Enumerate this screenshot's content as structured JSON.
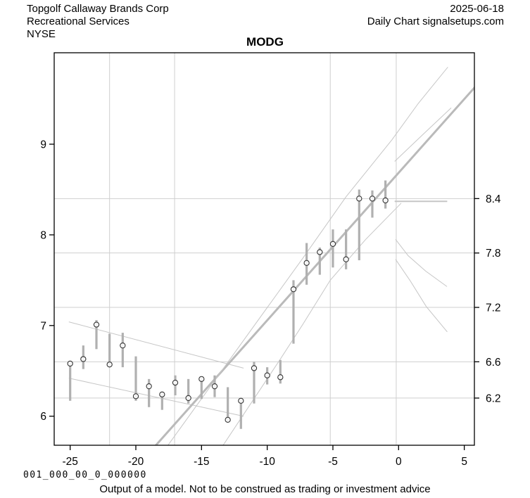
{
  "header": {
    "company": "Topgolf Callaway Brands Corp",
    "sector": "Recreational Services",
    "exchange": "NYSE",
    "date": "2025-06-18",
    "chart_type": "Daily Chart signalsetups.com"
  },
  "footer": {
    "signal_string": "0 0 1 _ 0 0 0 _ 0 0 _ 0 _ 0 0 0 0 0 0",
    "disclaimer": "Output of a model. Not to be construed as trading or investment advice"
  },
  "colors": {
    "frame": "#000000",
    "grid": "#cfcfcf",
    "bar": "#b0b0b0",
    "marker_stroke": "#333333",
    "marker_fill": "#ffffff",
    "overlay_thin": "#c6c6c6",
    "overlay_thick": "#bababa",
    "text": "#000000"
  },
  "chart_data": {
    "type": "bar",
    "subtype": "high-low-close daily price bars",
    "title": "MODG",
    "xlabel": "",
    "ylabel": "",
    "xlim": [
      -26.2,
      5.77
    ],
    "ylim": [
      5.68,
      10.01
    ],
    "x_ticks": [
      -25,
      -20,
      -15,
      -10,
      -5,
      0,
      5
    ],
    "y_ticks_left": [
      6,
      7,
      8,
      9
    ],
    "y_ticks_right": [
      6.2,
      6.6,
      7.2,
      7.8,
      8.4
    ],
    "x_gridlines": [
      -22.0,
      -17.05,
      -5.2,
      -0.18
    ],
    "y_gridlines": [
      6.2,
      6.6,
      7.2,
      7.8,
      8.4
    ],
    "grid": true,
    "legend": false,
    "bars": [
      {
        "x": -25,
        "high": 6.59,
        "low": 6.17,
        "close": 6.58
      },
      {
        "x": -24,
        "high": 6.78,
        "low": 6.52,
        "close": 6.63
      },
      {
        "x": -23,
        "high": 7.06,
        "low": 6.74,
        "close": 7.01
      },
      {
        "x": -22,
        "high": 6.91,
        "low": 6.54,
        "close": 6.57
      },
      {
        "x": -21,
        "high": 6.92,
        "low": 6.54,
        "close": 6.78
      },
      {
        "x": -20,
        "high": 6.66,
        "low": 6.17,
        "close": 6.22
      },
      {
        "x": -19,
        "high": 6.41,
        "low": 6.1,
        "close": 6.33
      },
      {
        "x": -18,
        "high": 6.27,
        "low": 6.07,
        "close": 6.24
      },
      {
        "x": -17,
        "high": 6.45,
        "low": 6.23,
        "close": 6.37
      },
      {
        "x": -16,
        "high": 6.41,
        "low": 6.14,
        "close": 6.2
      },
      {
        "x": -15,
        "high": 6.44,
        "low": 6.19,
        "close": 6.41
      },
      {
        "x": -14,
        "high": 6.45,
        "low": 6.21,
        "close": 6.33
      },
      {
        "x": -13,
        "high": 6.32,
        "low": 5.94,
        "close": 5.96
      },
      {
        "x": -12,
        "high": 6.18,
        "low": 5.86,
        "close": 6.17
      },
      {
        "x": -11,
        "high": 6.6,
        "low": 6.14,
        "close": 6.53
      },
      {
        "x": -10,
        "high": 6.54,
        "low": 6.35,
        "close": 6.45
      },
      {
        "x": -9,
        "high": 6.62,
        "low": 6.36,
        "close": 6.43
      },
      {
        "x": -8,
        "high": 7.5,
        "low": 6.8,
        "close": 7.4
      },
      {
        "x": -7,
        "high": 7.91,
        "low": 7.45,
        "close": 7.69
      },
      {
        "x": -6,
        "high": 7.86,
        "low": 7.56,
        "close": 7.81
      },
      {
        "x": -5,
        "high": 8.06,
        "low": 7.64,
        "close": 7.9
      },
      {
        "x": -4,
        "high": 8.06,
        "low": 7.62,
        "close": 7.73
      },
      {
        "x": -3,
        "high": 8.5,
        "low": 7.72,
        "close": 8.4
      },
      {
        "x": -2,
        "high": 8.49,
        "low": 8.19,
        "close": 8.4
      },
      {
        "x": -1,
        "high": 8.6,
        "low": 8.29,
        "close": 8.38
      }
    ],
    "overlays": [
      {
        "name": "descending-channel-upper",
        "width": 1,
        "points": [
          [
            -25.1,
            7.04
          ],
          [
            -11.8,
            6.53
          ]
        ]
      },
      {
        "name": "descending-channel-lower",
        "width": 1,
        "points": [
          [
            -25.1,
            6.42
          ],
          [
            -11.8,
            6.0
          ]
        ]
      },
      {
        "name": "regression-trendline",
        "width": 3,
        "points": [
          [
            -18.9,
            5.61
          ],
          [
            6.0,
            9.66
          ]
        ]
      },
      {
        "name": "ascending-wedge-upper",
        "width": 1,
        "points": [
          [
            -17.6,
            5.67
          ],
          [
            -7.3,
            7.74
          ],
          [
            -4.0,
            8.42
          ],
          [
            -0.5,
            9.05
          ],
          [
            1.5,
            9.45
          ],
          [
            3.75,
            9.85
          ]
        ]
      },
      {
        "name": "ascending-wedge-lower",
        "width": 1,
        "points": [
          [
            -13.4,
            5.67
          ],
          [
            -9.0,
            6.63
          ],
          [
            -7.3,
            7.01
          ],
          [
            -5.2,
            7.5
          ],
          [
            -2.5,
            7.95
          ],
          [
            0.2,
            8.35
          ]
        ]
      },
      {
        "name": "forecast-fan-up",
        "width": 1,
        "points": [
          [
            -0.3,
            8.81
          ],
          [
            1.8,
            9.1
          ],
          [
            4.0,
            9.4
          ]
        ]
      },
      {
        "name": "forecast-level-8.4",
        "width": 2,
        "points": [
          [
            -0.3,
            8.37
          ],
          [
            3.7,
            8.37
          ]
        ]
      },
      {
        "name": "forecast-fan-down-1",
        "width": 1,
        "points": [
          [
            -0.23,
            7.95
          ],
          [
            0.73,
            7.77
          ],
          [
            2.07,
            7.6
          ],
          [
            3.68,
            7.43
          ]
        ]
      },
      {
        "name": "forecast-fan-down-2",
        "width": 1,
        "points": [
          [
            -0.23,
            7.73
          ],
          [
            0.9,
            7.49
          ],
          [
            2.1,
            7.21
          ],
          [
            3.7,
            6.93
          ]
        ]
      }
    ]
  }
}
